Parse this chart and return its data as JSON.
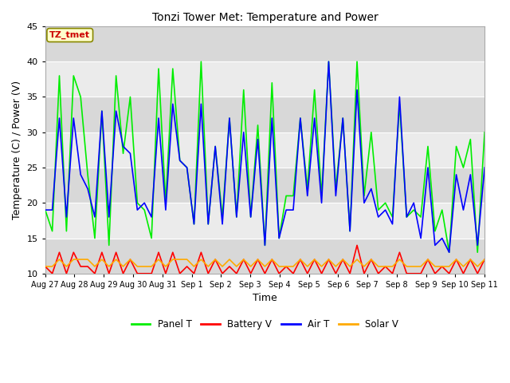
{
  "title": "Tonzi Tower Met: Temperature and Power",
  "xlabel": "Time",
  "ylabel": "Temperature (C) / Power (V)",
  "ylim": [
    10,
    45
  ],
  "yticks": [
    10,
    15,
    20,
    25,
    30,
    35,
    40,
    45
  ],
  "annotation_text": "TZ_tmet",
  "annotation_color": "#cc0000",
  "annotation_bg": "#ffffcc",
  "annotation_border": "#888800",
  "bg_color": "#e8e8e8",
  "colors": {
    "panel_t": "#00ee00",
    "battery_v": "#ff0000",
    "air_t": "#0000ff",
    "solar_v": "#ffaa00"
  },
  "legend_labels": [
    "Panel T",
    "Battery V",
    "Air T",
    "Solar V"
  ],
  "xtick_labels": [
    "Aug 27",
    "Aug 28",
    "Aug 29",
    "Aug 30",
    "Aug 31",
    "Sep 1",
    "Sep 2",
    "Sep 3",
    "Sep 4",
    "Sep 5",
    "Sep 6",
    "Sep 7",
    "Sep 8",
    "Sep 9",
    "Sep 10",
    "Sep 11"
  ],
  "panel_t": [
    19,
    16,
    38,
    16,
    38,
    35,
    24,
    15,
    33,
    14,
    38,
    27,
    35,
    20,
    19,
    15,
    39,
    20,
    39,
    26,
    25,
    17,
    40,
    17,
    28,
    18,
    32,
    18,
    36,
    18,
    31,
    14,
    37,
    15,
    21,
    21,
    32,
    22,
    36,
    21,
    40,
    22,
    32,
    16,
    40,
    21,
    30,
    19,
    20,
    18,
    34,
    18,
    19,
    18,
    28,
    16,
    19,
    13,
    28,
    25,
    29,
    13,
    30
  ],
  "battery_v": [
    11,
    10,
    13,
    10,
    13,
    11,
    11,
    10,
    13,
    10,
    13,
    10,
    12,
    10,
    10,
    10,
    13,
    10,
    13,
    10,
    11,
    10,
    13,
    10,
    12,
    10,
    11,
    10,
    12,
    10,
    12,
    10,
    12,
    10,
    11,
    10,
    12,
    10,
    12,
    10,
    12,
    10,
    12,
    10,
    14,
    10,
    12,
    10,
    11,
    10,
    13,
    10,
    10,
    10,
    12,
    10,
    11,
    10,
    12,
    10,
    12,
    10,
    12
  ],
  "air_t": [
    19,
    19,
    32,
    18,
    32,
    24,
    22,
    18,
    33,
    18,
    33,
    28,
    27,
    19,
    20,
    18,
    32,
    19,
    34,
    26,
    25,
    17,
    34,
    17,
    28,
    17,
    32,
    18,
    30,
    18,
    29,
    14,
    32,
    15,
    19,
    19,
    32,
    21,
    32,
    20,
    40,
    21,
    32,
    16,
    36,
    20,
    22,
    18,
    19,
    17,
    35,
    18,
    20,
    15,
    25,
    14,
    15,
    13,
    24,
    19,
    24,
    14,
    25
  ],
  "solar_v": [
    11,
    11,
    12,
    11,
    12,
    12,
    12,
    11,
    12,
    11,
    12,
    11,
    12,
    11,
    11,
    11,
    12,
    11,
    12,
    12,
    12,
    11,
    12,
    11,
    12,
    11,
    12,
    11,
    12,
    11,
    12,
    11,
    12,
    11,
    11,
    11,
    12,
    11,
    12,
    11,
    12,
    11,
    12,
    11,
    12,
    11,
    12,
    11,
    11,
    11,
    12,
    11,
    11,
    11,
    12,
    11,
    11,
    11,
    12,
    11,
    12,
    11,
    12
  ],
  "n_points": 63,
  "band_color_light": "#ebebeb",
  "band_color_dark": "#d8d8d8",
  "grid_color": "#ffffff"
}
